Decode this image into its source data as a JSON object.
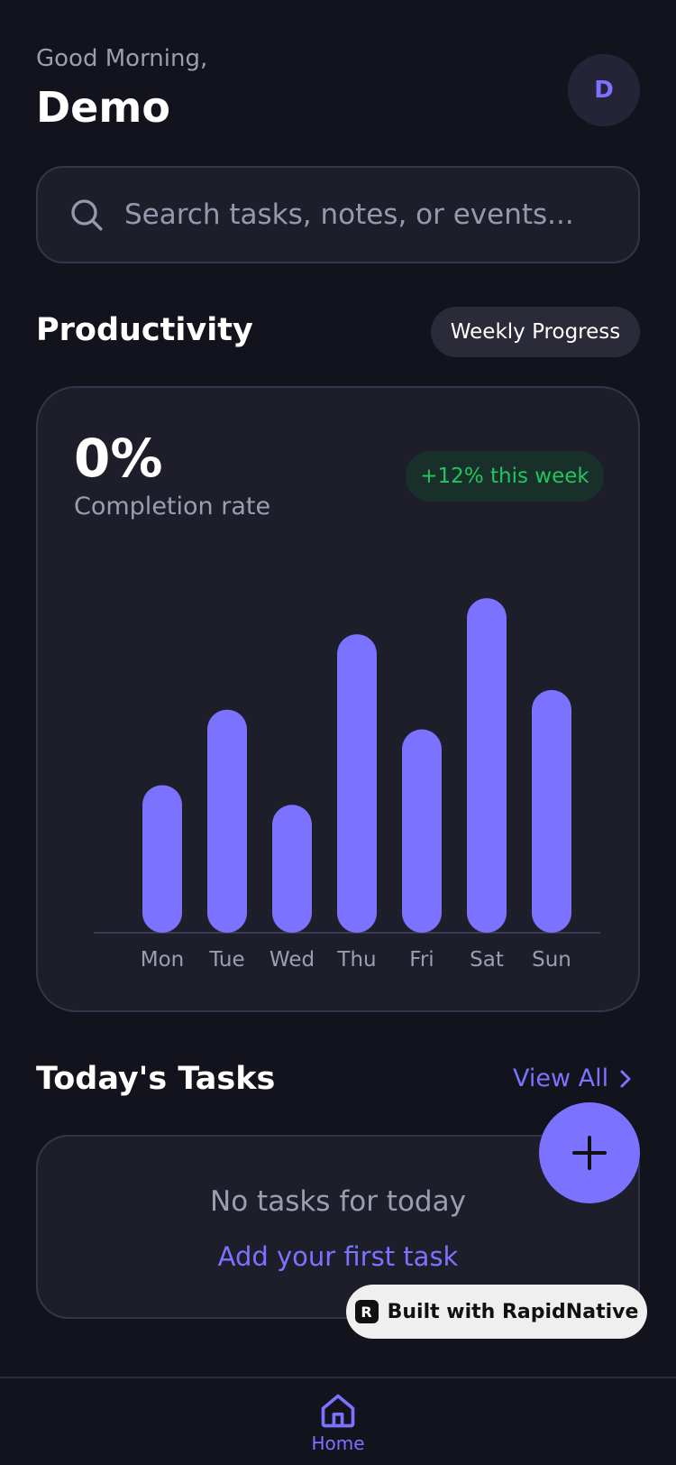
{
  "header": {
    "greeting": "Good Morning,",
    "username": "Demo",
    "avatar_initial": "D"
  },
  "search": {
    "placeholder": "Search tasks, notes, or events..."
  },
  "productivity": {
    "title": "Productivity",
    "range_pill": "Weekly Progress",
    "rate_value": "0%",
    "rate_label": "Completion rate",
    "trend_badge": "+12% this week"
  },
  "chart_data": {
    "type": "bar",
    "categories": [
      "Mon",
      "Tue",
      "Wed",
      "Thu",
      "Fri",
      "Sat",
      "Sun"
    ],
    "values": [
      45,
      68,
      39,
      91,
      62,
      102,
      74
    ],
    "ylim": [
      0,
      110
    ],
    "grid": false,
    "color": "#7b73ff"
  },
  "tasks": {
    "title": "Today's Tasks",
    "view_all": "View All",
    "empty_text": "No tasks for today",
    "add_link": "Add your first task"
  },
  "fab": {
    "icon": "plus-icon"
  },
  "badge": {
    "label": "Built with RapidNative",
    "logo": "R"
  },
  "tabbar": {
    "home_label": "Home",
    "home_icon": "home-icon"
  },
  "colors": {
    "background": "#13131d",
    "card": "#1e1e2b",
    "accent": "#7b73ff",
    "success": "#22c55e"
  }
}
